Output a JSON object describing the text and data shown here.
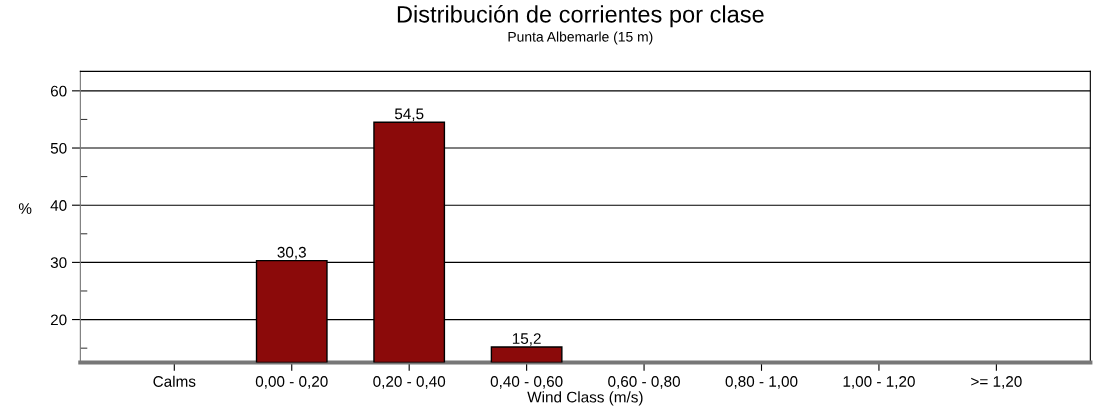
{
  "chart_data": {
    "type": "bar",
    "title": "Distribución de corrientes por clase",
    "subtitle": "Punta Albemarle (15 m)",
    "xlabel": "Wind Class (m/s)",
    "ylabel": "%",
    "categories": [
      "Calms",
      "0,00 - 0,20",
      "0,20 - 0,40",
      "0,40 - 0,60",
      "0,60 - 0,80",
      "0,80 - 1,00",
      "1,00 - 1,20",
      ">= 1,20"
    ],
    "values": [
      null,
      30.3,
      54.5,
      15.2,
      null,
      null,
      null,
      null
    ],
    "value_labels": [
      null,
      "30,3",
      "54,5",
      "15,2",
      null,
      null,
      null,
      null
    ],
    "color": "#8b0a0a",
    "ylim": [
      12.5,
      63.4
    ],
    "yticks": [
      {
        "value": 15,
        "label": null
      },
      20,
      {
        "value": 25,
        "label": null
      },
      30,
      {
        "value": 35,
        "label": null
      },
      40,
      {
        "value": 45,
        "label": null
      },
      50,
      {
        "value": 55,
        "label": null
      },
      60
    ],
    "grid": "y"
  }
}
